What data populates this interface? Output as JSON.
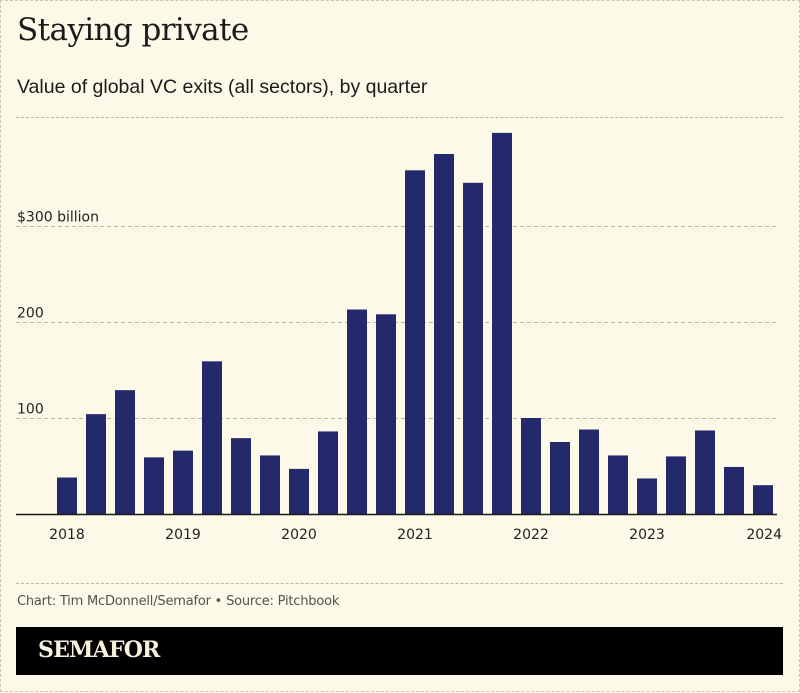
{
  "header": {
    "title": "Staying private",
    "subtitle": "Value of global VC exits (all sectors), by quarter"
  },
  "footer": {
    "source": "Chart: Tim McDonnell/Semafor • Source: Pitchbook",
    "brand": "SEMAFOR"
  },
  "colors": {
    "background": "#fcf9e8",
    "bar": "#23296a",
    "gridline": "#b9b6a6",
    "text": "#1b1b1b",
    "brand_bar": "#000000"
  },
  "chart_data": {
    "type": "bar",
    "title": "Staying private",
    "subtitle": "Value of global VC exits (all sectors), by quarter",
    "xlabel": "",
    "ylabel": "",
    "units": "billion USD",
    "ylim": [
      0,
      400
    ],
    "grid": true,
    "legend": "none",
    "yticks": [
      {
        "value": 100,
        "label": "100"
      },
      {
        "value": 200,
        "label": "200"
      },
      {
        "value": 300,
        "label": "$300 billion"
      }
    ],
    "xtick_labels": [
      {
        "index": 0,
        "label": "2018"
      },
      {
        "index": 4,
        "label": "2019"
      },
      {
        "index": 8,
        "label": "2020"
      },
      {
        "index": 12,
        "label": "2021"
      },
      {
        "index": 16,
        "label": "2022"
      },
      {
        "index": 20,
        "label": "2023"
      },
      {
        "index": 24,
        "label": "2024"
      }
    ],
    "categories": [
      "2018 Q1",
      "2018 Q2",
      "2018 Q3",
      "2018 Q4",
      "2019 Q1",
      "2019 Q2",
      "2019 Q3",
      "2019 Q4",
      "2020 Q1",
      "2020 Q2",
      "2020 Q3",
      "2020 Q4",
      "2021 Q1",
      "2021 Q2",
      "2021 Q3",
      "2021 Q4",
      "2022 Q1",
      "2022 Q2",
      "2022 Q3",
      "2022 Q4",
      "2023 Q1",
      "2023 Q2",
      "2023 Q3",
      "2023 Q4",
      "2024 Q1"
    ],
    "values": [
      38,
      104,
      129,
      59,
      66,
      159,
      79,
      61,
      47,
      86,
      213,
      208,
      358,
      375,
      345,
      397,
      100,
      75,
      88,
      61,
      37,
      60,
      87,
      49,
      30
    ]
  }
}
